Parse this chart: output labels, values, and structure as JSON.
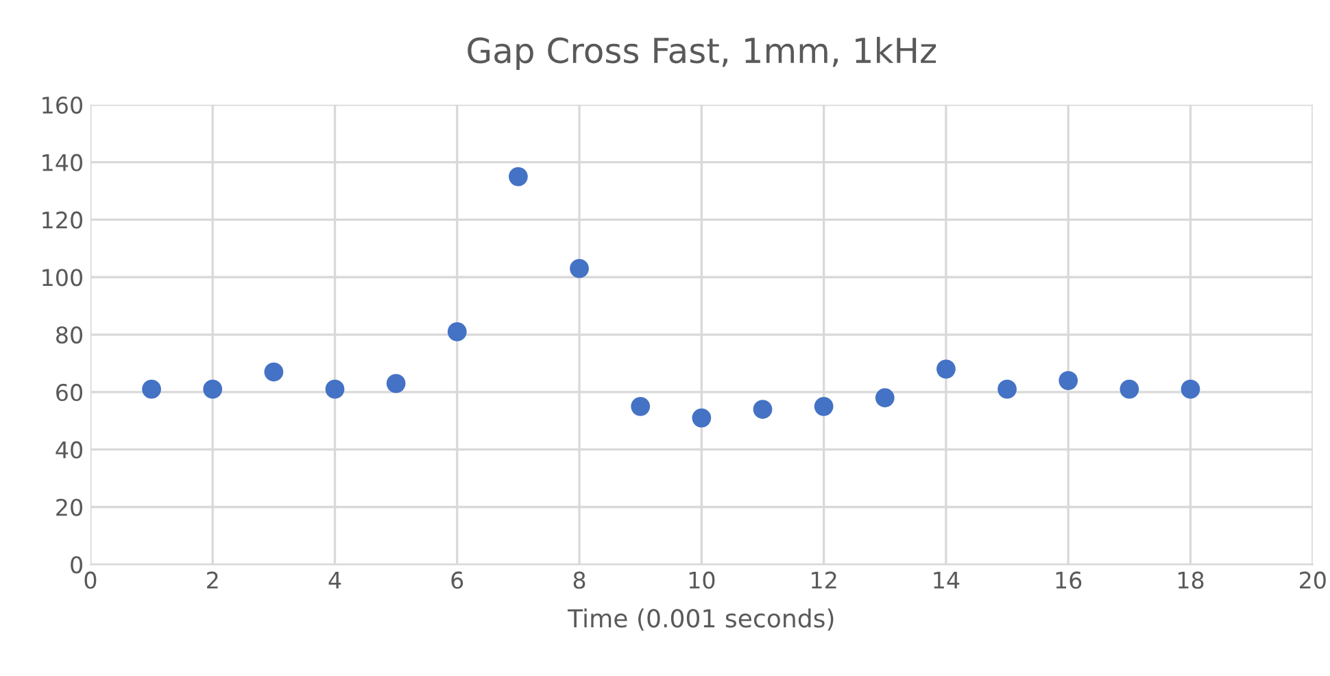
{
  "chart_data": {
    "type": "scatter",
    "title": "Gap Cross Fast, 1mm, 1kHz",
    "xlabel": "Time (0.001 seconds)",
    "x": [
      1,
      2,
      3,
      4,
      5,
      6,
      7,
      8,
      9,
      10,
      11,
      12,
      13,
      14,
      15,
      16,
      17,
      18
    ],
    "series": [
      {
        "color": "#4472c4",
        "values": [
          61,
          61,
          67,
          61,
          63,
          81,
          135,
          103,
          55,
          51,
          54,
          55,
          58,
          68,
          61,
          64,
          61,
          61
        ]
      }
    ],
    "xlim": [
      0,
      20
    ],
    "xticks": [
      0,
      2,
      4,
      6,
      8,
      10,
      12,
      14,
      16,
      18,
      20
    ],
    "ylim": [
      0,
      160
    ],
    "yticks": [
      0,
      20,
      40,
      60,
      80,
      100,
      120,
      140,
      160
    ],
    "grid": true,
    "marker": "circle"
  }
}
